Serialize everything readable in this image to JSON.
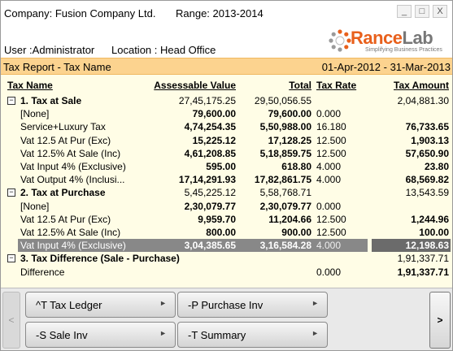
{
  "header": {
    "company": "Company: Fusion Company Ltd.",
    "range": "Range: 2013-2014",
    "window_buttons": [
      "_",
      "□",
      "X"
    ]
  },
  "info": {
    "user": "User :Administrator",
    "location": "Location : Head Office"
  },
  "logo": {
    "brand_first": "Rance",
    "brand_second": "Lab",
    "tagline": "Simplifying Business Practices"
  },
  "report": {
    "title": "Tax Report - Tax Name",
    "date_range": "01-Apr-2012 - 31-Mar-2013"
  },
  "columns": {
    "name": "Tax Name",
    "assessable": "Assessable Value",
    "total": "Total",
    "rate": "Tax Rate",
    "amount": "Tax Amount"
  },
  "rows": [
    {
      "type": "group",
      "toggle": "−",
      "name": "1. Tax at Sale",
      "assessable": "27,45,175.25",
      "total": "29,50,056.55",
      "rate": "",
      "amount": "2,04,881.30"
    },
    {
      "type": "item",
      "name": "[None]",
      "assessable": "79,600.00",
      "total": "79,600.00",
      "rate": "0.000",
      "amount": ""
    },
    {
      "type": "item",
      "name": "Service+Luxury Tax",
      "assessable": "4,74,254.35",
      "total": "5,50,988.00",
      "rate": "16.180",
      "amount": "76,733.65"
    },
    {
      "type": "item",
      "name": "Vat 12.5 At Pur (Exc)",
      "assessable": "15,225.12",
      "total": "17,128.25",
      "rate": "12.500",
      "amount": "1,903.13"
    },
    {
      "type": "item",
      "name": "Vat 12.5% At Sale (Inc)",
      "assessable": "4,61,208.85",
      "total": "5,18,859.75",
      "rate": "12.500",
      "amount": "57,650.90"
    },
    {
      "type": "item",
      "name": "Vat Input 4% (Exclusive)",
      "assessable": "595.00",
      "total": "618.80",
      "rate": "4.000",
      "amount": "23.80"
    },
    {
      "type": "item",
      "name": "Vat Output 4% (Inclusi...",
      "assessable": "17,14,291.93",
      "total": "17,82,861.75",
      "rate": "4.000",
      "amount": "68,569.82"
    },
    {
      "type": "group",
      "toggle": "−",
      "name": "2. Tax at Purchase",
      "assessable": "5,45,225.12",
      "total": "5,58,768.71",
      "rate": "",
      "amount": "13,543.59"
    },
    {
      "type": "item",
      "name": "[None]",
      "assessable": "2,30,079.77",
      "total": "2,30,079.77",
      "rate": "0.000",
      "amount": ""
    },
    {
      "type": "item",
      "name": "Vat 12.5 At Pur (Exc)",
      "assessable": "9,959.70",
      "total": "11,204.66",
      "rate": "12.500",
      "amount": "1,244.96"
    },
    {
      "type": "item",
      "name": "Vat 12.5% At Sale (Inc)",
      "assessable": "800.00",
      "total": "900.00",
      "rate": "12.500",
      "amount": "100.00"
    },
    {
      "type": "selected",
      "name": "Vat Input 4% (Exclusive)",
      "assessable": "3,04,385.65",
      "total": "3,16,584.28",
      "rate": "4.000",
      "amount": "12,198.63"
    },
    {
      "type": "group",
      "toggle": "−",
      "name": "3. Tax Difference (Sale - Purchase)",
      "assessable": "",
      "total": "",
      "rate": "",
      "amount": "1,91,337.71"
    },
    {
      "type": "item",
      "name": "Difference",
      "assessable": "",
      "total": "",
      "rate": "0.000",
      "amount": "1,91,337.71"
    }
  ],
  "toolbar": {
    "btn_tax_ledger": "^T Tax Ledger",
    "btn_purchase_inv": "-P Purchase Inv",
    "btn_sale_inv": "-S Sale Inv",
    "btn_summary": "-T Summary",
    "scroll_left": "<",
    "scroll_right": ">"
  },
  "colors": {
    "report_bar": "#fcd38f",
    "grid_bg": "#fffde6",
    "brand_accent": "#e8601c",
    "selection": "#888888"
  }
}
